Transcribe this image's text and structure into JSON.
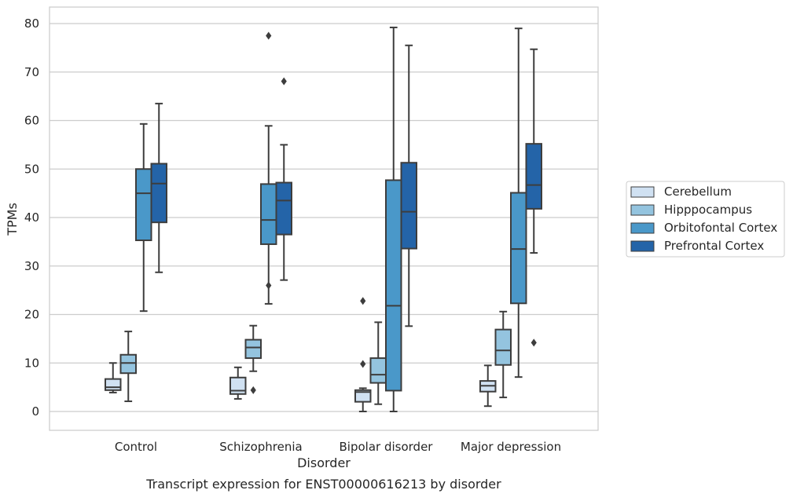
{
  "chart_data": {
    "type": "boxplot",
    "caption": "Transcript expression for ENST00000616213 by disorder",
    "xlabel": "Disorder",
    "ylabel": "TPMs",
    "ylim": [
      -4,
      83
    ],
    "yticks": [
      0,
      10,
      20,
      30,
      40,
      50,
      60,
      70,
      80
    ],
    "grid": true,
    "legend_placement": "right",
    "categories": [
      "Control",
      "Schizophrenia",
      "Bipolar disorder",
      "Major depression"
    ],
    "series": [
      {
        "name": "Cerebellum",
        "color": "#d0e1f2",
        "boxes": [
          {
            "whislo": 3.9,
            "q1": 4.4,
            "med": 5.0,
            "q3": 6.7,
            "whishi": 10.0,
            "fliers": []
          },
          {
            "whislo": 2.6,
            "q1": 3.6,
            "med": 4.3,
            "q3": 7.0,
            "whishi": 9.1,
            "fliers": []
          },
          {
            "whislo": 0.0,
            "q1": 2.0,
            "med": 4.0,
            "q3": 4.4,
            "whishi": 4.8,
            "fliers": [
              9.8,
              22.8
            ]
          },
          {
            "whislo": 1.1,
            "q1": 4.1,
            "med": 5.3,
            "q3": 6.3,
            "whishi": 9.5,
            "fliers": []
          }
        ]
      },
      {
        "name": "Hipppocampus",
        "color": "#94c4df",
        "boxes": [
          {
            "whislo": 2.1,
            "q1": 7.9,
            "med": 10.0,
            "q3": 11.7,
            "whishi": 16.5,
            "fliers": []
          },
          {
            "whislo": 8.3,
            "q1": 11.0,
            "med": 13.2,
            "q3": 14.8,
            "whishi": 17.7,
            "fliers": [
              4.4
            ]
          },
          {
            "whislo": 1.5,
            "q1": 5.9,
            "med": 7.6,
            "q3": 11.0,
            "whishi": 18.4,
            "fliers": []
          },
          {
            "whislo": 2.9,
            "q1": 9.6,
            "med": 12.6,
            "q3": 16.9,
            "whishi": 20.6,
            "fliers": []
          }
        ]
      },
      {
        "name": "Orbitofontal Cortex",
        "color": "#4a98c9",
        "boxes": [
          {
            "whislo": 20.7,
            "q1": 35.3,
            "med": 45.0,
            "q3": 50.0,
            "whishi": 59.3,
            "fliers": []
          },
          {
            "whislo": 22.2,
            "q1": 34.5,
            "med": 39.5,
            "q3": 46.9,
            "whishi": 58.9,
            "fliers": [
              26.0,
              77.5
            ]
          },
          {
            "whislo": 0.0,
            "q1": 4.3,
            "med": 21.8,
            "q3": 47.7,
            "whishi": 79.2,
            "fliers": []
          },
          {
            "whislo": 7.1,
            "q1": 22.3,
            "med": 33.5,
            "q3": 45.1,
            "whishi": 79.0,
            "fliers": []
          }
        ]
      },
      {
        "name": "Prefrontal Cortex",
        "color": "#2464a8",
        "boxes": [
          {
            "whislo": 28.7,
            "q1": 39.0,
            "med": 47.0,
            "q3": 51.1,
            "whishi": 63.5,
            "fliers": []
          },
          {
            "whislo": 27.1,
            "q1": 36.5,
            "med": 43.5,
            "q3": 47.2,
            "whishi": 55.0,
            "fliers": [
              68.1
            ]
          },
          {
            "whislo": 17.6,
            "q1": 33.6,
            "med": 41.2,
            "q3": 51.3,
            "whishi": 75.5,
            "fliers": []
          },
          {
            "whislo": 32.7,
            "q1": 41.8,
            "med": 46.7,
            "q3": 55.2,
            "whishi": 74.7,
            "fliers": [
              14.2
            ]
          }
        ]
      }
    ]
  }
}
